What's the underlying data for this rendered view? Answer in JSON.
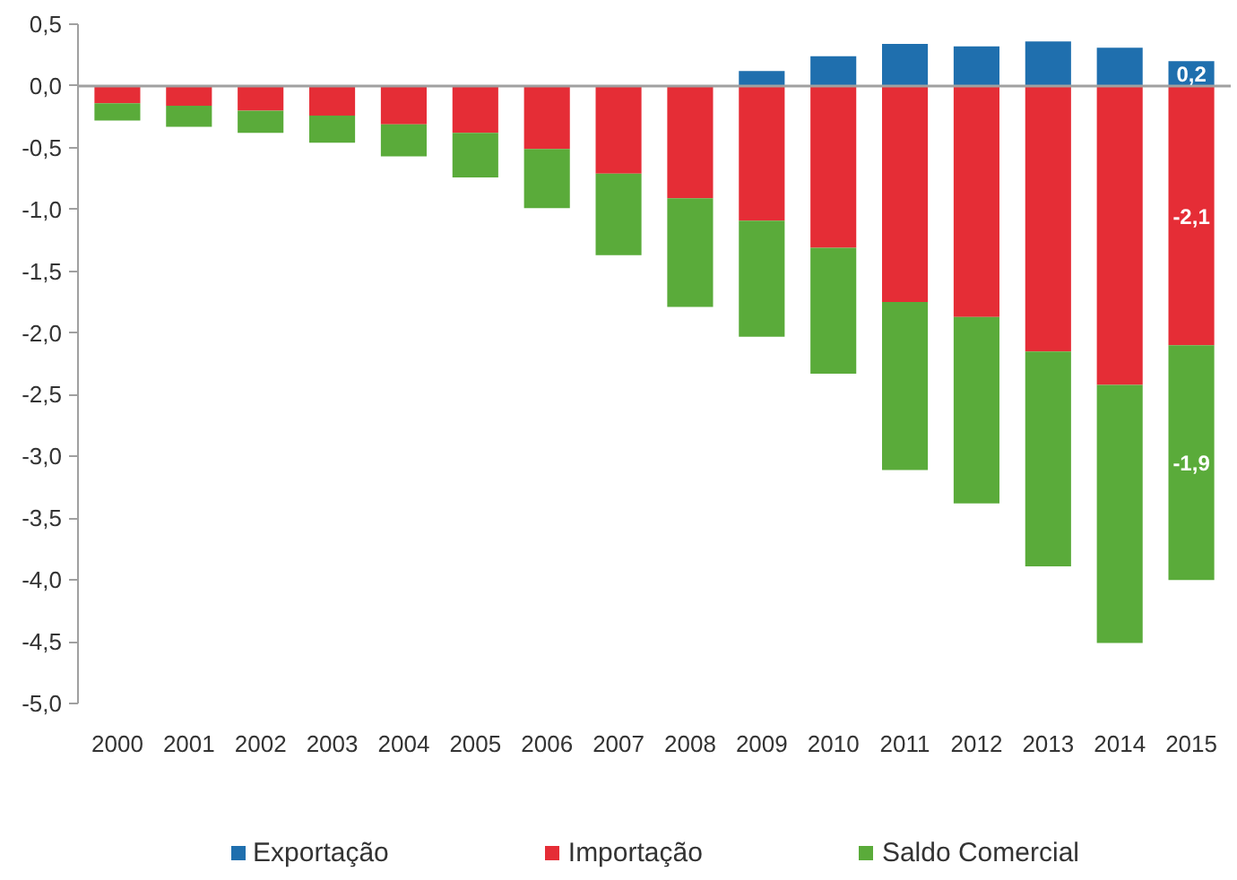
{
  "chart_data": {
    "type": "bar",
    "stacked": true,
    "legend": "bottom",
    "categories": [
      "2000",
      "2001",
      "2002",
      "2003",
      "2004",
      "2005",
      "2006",
      "2007",
      "2008",
      "2009",
      "2010",
      "2011",
      "2012",
      "2013",
      "2014",
      "2015"
    ],
    "series": [
      {
        "name": "Exportação",
        "color": "#1f6fae",
        "values": [
          null,
          null,
          null,
          null,
          null,
          null,
          null,
          null,
          null,
          0.12,
          0.24,
          0.34,
          0.32,
          0.36,
          0.31,
          0.2
        ],
        "value_labels": [
          null,
          null,
          null,
          null,
          null,
          null,
          null,
          null,
          null,
          null,
          null,
          null,
          null,
          null,
          null,
          "0,2"
        ]
      },
      {
        "name": "Importação",
        "color": "#e52d36",
        "values": [
          -0.14,
          -0.16,
          -0.2,
          -0.24,
          -0.31,
          -0.38,
          -0.51,
          -0.71,
          -0.91,
          -1.09,
          -1.31,
          -1.75,
          -1.87,
          -2.15,
          -2.42,
          -2.1
        ],
        "value_labels": [
          null,
          null,
          null,
          null,
          null,
          null,
          null,
          null,
          null,
          null,
          null,
          null,
          null,
          null,
          null,
          "-2,1"
        ]
      },
      {
        "name": "Saldo Comercial",
        "color": "#5aab3a",
        "values": [
          -0.14,
          -0.17,
          -0.18,
          -0.22,
          -0.26,
          -0.36,
          -0.48,
          -0.66,
          -0.88,
          -0.94,
          -1.02,
          -1.36,
          -1.51,
          -1.74,
          -2.09,
          -1.9
        ],
        "value_labels": [
          null,
          null,
          null,
          null,
          null,
          null,
          null,
          null,
          null,
          null,
          null,
          null,
          null,
          null,
          null,
          "-1,9"
        ]
      }
    ],
    "ylim": [
      -5.0,
      0.5
    ],
    "yticks": [
      {
        "value": 0.5,
        "label": "0,5"
      },
      {
        "value": 0.0,
        "label": "0,0"
      },
      {
        "value": -0.5,
        "label": "-0,5"
      },
      {
        "value": -1.0,
        "label": "-1,0"
      },
      {
        "value": -1.5,
        "label": "-1,5"
      },
      {
        "value": -2.0,
        "label": "-2,0"
      },
      {
        "value": -2.5,
        "label": "-2,5"
      },
      {
        "value": -3.0,
        "label": "-3,0"
      },
      {
        "value": -3.5,
        "label": "-3,5"
      },
      {
        "value": -4.0,
        "label": "-4,0"
      },
      {
        "value": -4.5,
        "label": "-4,5"
      },
      {
        "value": -5.0,
        "label": "-5,0"
      }
    ]
  }
}
